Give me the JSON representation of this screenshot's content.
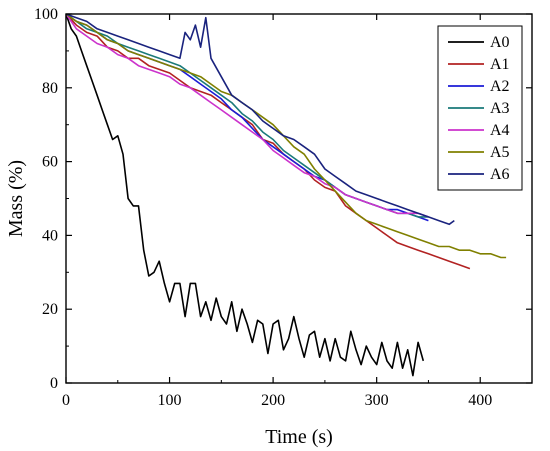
{
  "chart_data": {
    "type": "line",
    "title": "",
    "xlabel": "Time (s)",
    "ylabel": "Mass (%)",
    "xlim": [
      0,
      450
    ],
    "ylim": [
      0,
      100
    ],
    "xticks": [
      0,
      100,
      200,
      300,
      400
    ],
    "yticks": [
      0,
      20,
      40,
      60,
      80,
      100
    ],
    "grid": false,
    "legend_position": "top-right",
    "series": [
      {
        "name": "A0",
        "color": "#000000",
        "x": [
          0,
          5,
          10,
          15,
          20,
          25,
          30,
          35,
          40,
          45,
          50,
          55,
          60,
          65,
          70,
          75,
          80,
          85,
          90,
          95,
          100,
          105,
          110,
          115,
          120,
          125,
          130,
          135,
          140,
          145,
          150,
          155,
          160,
          165,
          170,
          175,
          180,
          185,
          190,
          195,
          200,
          205,
          210,
          215,
          220,
          225,
          230,
          235,
          240,
          245,
          250,
          255,
          260,
          265,
          270,
          275,
          280,
          285,
          290,
          295,
          300,
          305,
          310,
          315,
          320,
          325,
          330,
          335,
          340,
          345
        ],
        "y": [
          100,
          96,
          94,
          90,
          86,
          82,
          78,
          74,
          70,
          66,
          67,
          62,
          50,
          48,
          48,
          36,
          29,
          30,
          33,
          27,
          22,
          27,
          27,
          18,
          27,
          27,
          18,
          22,
          17,
          23,
          18,
          16,
          22,
          14,
          20,
          16,
          11,
          17,
          16,
          8,
          16,
          17,
          9,
          12,
          18,
          12,
          7,
          13,
          14,
          7,
          12,
          6,
          12,
          7,
          6,
          14,
          9,
          5,
          10,
          7,
          5,
          11,
          6,
          4,
          11,
          4,
          9,
          2,
          11,
          6
        ]
      },
      {
        "name": "A1",
        "color": "#b22222",
        "x": [
          0,
          10,
          20,
          30,
          40,
          50,
          60,
          70,
          80,
          90,
          100,
          110,
          120,
          130,
          140,
          150,
          160,
          170,
          180,
          190,
          200,
          210,
          220,
          230,
          240,
          250,
          260,
          270,
          280,
          290,
          300,
          310,
          320,
          330,
          340,
          350,
          360,
          370,
          380,
          390
        ],
        "y": [
          100,
          97,
          95,
          94,
          91,
          90,
          88,
          88,
          86,
          85,
          84,
          82,
          80,
          79,
          78,
          76,
          74,
          72,
          70,
          66,
          65,
          62,
          60,
          58,
          55,
          53,
          52,
          48,
          46,
          44,
          42,
          40,
          38,
          37,
          36,
          35,
          34,
          33,
          32,
          31
        ]
      },
      {
        "name": "A2",
        "color": "#1c1cd6",
        "x": [
          0,
          10,
          20,
          30,
          40,
          50,
          60,
          70,
          80,
          90,
          100,
          110,
          120,
          130,
          140,
          150,
          160,
          170,
          180,
          190,
          200,
          210,
          220,
          230,
          240,
          250,
          260,
          270,
          280,
          290,
          300,
          310,
          320,
          330,
          340,
          350
        ],
        "y": [
          100,
          98,
          97,
          95,
          93,
          92,
          90,
          89,
          88,
          87,
          86,
          85,
          83,
          81,
          79,
          77,
          74,
          72,
          69,
          66,
          64,
          62,
          60,
          58,
          56,
          55,
          53,
          51,
          50,
          49,
          48,
          47,
          47,
          46,
          45,
          44
        ]
      },
      {
        "name": "A3",
        "color": "#1a7a7a",
        "x": [
          0,
          10,
          20,
          30,
          40,
          50,
          60,
          70,
          80,
          90,
          100,
          110,
          120,
          130,
          140,
          150,
          160,
          170,
          180,
          190,
          200,
          210,
          220,
          230,
          240,
          250,
          260,
          270,
          280,
          290,
          300,
          310,
          320,
          330,
          340,
          350
        ],
        "y": [
          100,
          98,
          96,
          95,
          94,
          92,
          91,
          90,
          89,
          88,
          87,
          86,
          84,
          82,
          80,
          78,
          76,
          73,
          71,
          68,
          66,
          63,
          61,
          59,
          57,
          55,
          53,
          51,
          50,
          49,
          48,
          47,
          46,
          46,
          45,
          45
        ]
      },
      {
        "name": "A4",
        "color": "#cc33cc",
        "x": [
          0,
          10,
          20,
          30,
          40,
          50,
          60,
          70,
          80,
          90,
          100,
          110,
          120,
          130,
          140,
          150,
          160,
          170,
          180,
          190,
          200,
          210,
          220,
          230,
          240,
          250,
          260,
          270,
          280,
          290,
          300,
          310,
          320,
          330,
          340,
          350
        ],
        "y": [
          100,
          96,
          94,
          92,
          91,
          89,
          88,
          86,
          85,
          84,
          83,
          81,
          80,
          78,
          76,
          74,
          72,
          70,
          68,
          66,
          63,
          61,
          59,
          57,
          56,
          54,
          53,
          51,
          50,
          49,
          48,
          47,
          46,
          46,
          46,
          45
        ]
      },
      {
        "name": "A5",
        "color": "#808000",
        "x": [
          0,
          10,
          20,
          30,
          40,
          50,
          60,
          70,
          80,
          90,
          100,
          110,
          120,
          130,
          140,
          150,
          160,
          170,
          180,
          190,
          200,
          210,
          220,
          230,
          240,
          250,
          260,
          270,
          280,
          290,
          300,
          310,
          320,
          330,
          340,
          350,
          360,
          370,
          380,
          390,
          400,
          410,
          420,
          425
        ],
        "y": [
          100,
          98,
          97,
          95,
          93,
          92,
          90,
          89,
          88,
          87,
          86,
          85,
          84,
          83,
          81,
          79,
          78,
          76,
          74,
          72,
          70,
          67,
          64,
          62,
          58,
          55,
          52,
          49,
          46,
          44,
          43,
          42,
          41,
          40,
          39,
          38,
          37,
          37,
          36,
          36,
          35,
          35,
          34,
          34
        ]
      },
      {
        "name": "A6",
        "color": "#1a237e",
        "x": [
          0,
          10,
          20,
          30,
          40,
          50,
          60,
          70,
          80,
          90,
          100,
          110,
          115,
          120,
          125,
          130,
          135,
          140,
          150,
          160,
          170,
          180,
          190,
          200,
          210,
          220,
          230,
          240,
          250,
          260,
          270,
          280,
          290,
          300,
          310,
          320,
          330,
          340,
          350,
          360,
          370,
          375
        ],
        "y": [
          100,
          99,
          98,
          96,
          95,
          94,
          93,
          92,
          91,
          90,
          89,
          88,
          95,
          93,
          97,
          91,
          99,
          88,
          83,
          78,
          76,
          74,
          71,
          69,
          67,
          66,
          64,
          62,
          58,
          56,
          54,
          52,
          51,
          50,
          49,
          48,
          47,
          46,
          45,
          44,
          43,
          44
        ]
      }
    ]
  }
}
